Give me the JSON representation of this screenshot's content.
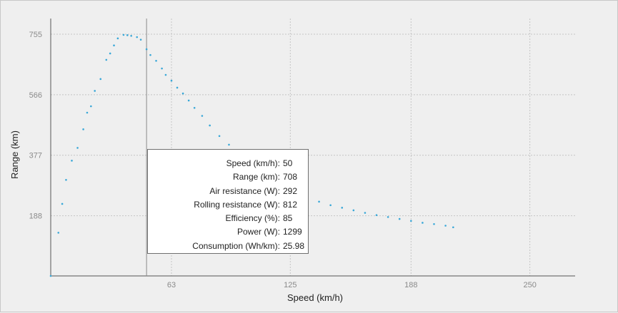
{
  "chart_data": {
    "type": "scatter",
    "xlabel": "Speed (km/h)",
    "ylabel": "Range (km)",
    "x_ticks": [
      63,
      125,
      188,
      250
    ],
    "y_ticks": [
      188,
      377,
      566,
      755
    ],
    "xlim": [
      0,
      270
    ],
    "ylim": [
      0,
      800
    ],
    "grid": true,
    "series_color": "#3aa8d8",
    "cursor_x": 50,
    "x": [
      0,
      4,
      6,
      8,
      11,
      14,
      17,
      19,
      21,
      23,
      26,
      29,
      31,
      33,
      35,
      38,
      40,
      42,
      45,
      47,
      50,
      52,
      55,
      58,
      60,
      63,
      66,
      69,
      72,
      75,
      79,
      83,
      88,
      93,
      98,
      103,
      108,
      113,
      118,
      123,
      128,
      134,
      140,
      146,
      152,
      158,
      164,
      170,
      176,
      182,
      188,
      194,
      200,
      206,
      210
    ],
    "y": [
      0,
      135,
      225,
      300,
      360,
      400,
      458,
      510,
      530,
      578,
      615,
      675,
      695,
      720,
      742,
      753,
      752,
      750,
      746,
      738,
      708,
      690,
      672,
      648,
      628,
      610,
      588,
      570,
      548,
      525,
      500,
      470,
      437,
      410,
      380,
      358,
      335,
      312,
      295,
      278,
      262,
      245,
      232,
      221,
      213,
      205,
      197,
      190,
      184,
      178,
      172,
      166,
      162,
      157,
      152
    ]
  },
  "tooltip": {
    "rows": [
      {
        "label": "Speed (km/h):",
        "value": "50"
      },
      {
        "label": "Range (km):",
        "value": "708"
      },
      {
        "label": "Air resistance (W):",
        "value": "292"
      },
      {
        "label": "Rolling resistance (W):",
        "value": "812"
      },
      {
        "label": "Efficiency (%):",
        "value": "85"
      },
      {
        "label": "Power (W):",
        "value": "1299"
      },
      {
        "label": "Consumption (Wh/km):",
        "value": "25.98"
      }
    ]
  }
}
